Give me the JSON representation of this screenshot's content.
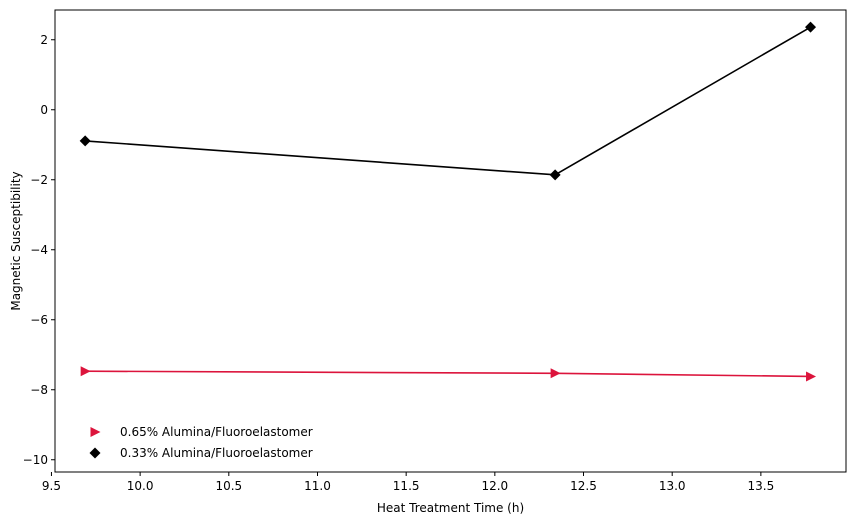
{
  "chart_data": {
    "type": "line",
    "xlabel": "Heat Treatment Time (h)",
    "ylabel": "Magnetic Susceptibility",
    "xlim": [
      9.52,
      13.98
    ],
    "ylim": [
      -10.35,
      2.85
    ],
    "xticks": [
      9.5,
      10.0,
      10.5,
      11.0,
      11.5,
      12.0,
      12.5,
      13.0,
      13.5
    ],
    "xtick_labels": [
      "9.5",
      "10.0",
      "10.5",
      "11.0",
      "11.5",
      "12.0",
      "12.5",
      "13.0",
      "13.5"
    ],
    "yticks": [
      -10,
      -8,
      -6,
      -4,
      -2,
      0,
      2
    ],
    "ytick_labels": [
      "−10",
      "−8",
      "−6",
      "−4",
      "−2",
      "0",
      "2"
    ],
    "grid": false,
    "legend_position": "lower-left",
    "series": [
      {
        "name": "0.65% Alumina/Fluoroelastomer",
        "marker": "triangle-right",
        "color": "#dc143c",
        "x": [
          9.69,
          12.34,
          13.78
        ],
        "y": [
          -7.47,
          -7.53,
          -7.62
        ]
      },
      {
        "name": "0.33% Alumina/Fluoroelastomer",
        "marker": "diamond",
        "color": "#000000",
        "x": [
          9.69,
          12.34,
          13.78
        ],
        "y": [
          -0.89,
          -1.86,
          2.36
        ]
      }
    ]
  }
}
